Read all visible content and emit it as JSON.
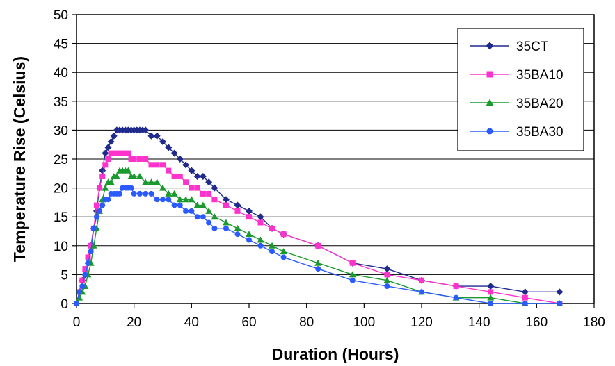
{
  "chart_data": {
    "type": "line",
    "xlabel": "Duration (Hours)",
    "ylabel": "Temperature Rise (Celsius)",
    "xlim": [
      0,
      180
    ],
    "ylim": [
      0,
      50
    ],
    "xticks": [
      0,
      20,
      40,
      60,
      80,
      100,
      120,
      140,
      160,
      180
    ],
    "yticks": [
      0,
      5,
      10,
      15,
      20,
      25,
      30,
      35,
      40,
      45,
      50
    ],
    "grid": "horizontal",
    "legend": "top-right",
    "series": [
      {
        "name": "35CT",
        "color": "#1f2a8c",
        "marker": "diamond",
        "x": [
          0,
          1,
          2,
          3,
          4,
          5,
          6,
          7,
          8,
          9,
          10,
          11,
          12,
          13,
          14,
          15,
          16,
          17,
          18,
          19,
          20,
          21,
          22,
          23,
          24,
          26,
          28,
          30,
          32,
          34,
          36,
          38,
          40,
          42,
          44,
          46,
          48,
          52,
          56,
          60,
          64,
          68,
          72,
          84,
          96,
          108,
          120,
          132,
          144,
          156,
          168
        ],
        "y": [
          0,
          2,
          4,
          5,
          7,
          10,
          13,
          16,
          20,
          23,
          26,
          27,
          28,
          29,
          30,
          30,
          30,
          30,
          30,
          30,
          30,
          30,
          30,
          30,
          30,
          29,
          29,
          28,
          27,
          26,
          25,
          24,
          23,
          22,
          22,
          21,
          20,
          18,
          17,
          16,
          15,
          13,
          12,
          10,
          7,
          6,
          4,
          3,
          3,
          2,
          2
        ]
      },
      {
        "name": "35BA10",
        "color": "#ff33cc",
        "marker": "square",
        "x": [
          0,
          1,
          2,
          3,
          4,
          5,
          6,
          7,
          8,
          9,
          10,
          11,
          12,
          13,
          14,
          15,
          16,
          17,
          18,
          19,
          20,
          22,
          24,
          26,
          28,
          30,
          32,
          34,
          36,
          38,
          40,
          42,
          44,
          46,
          48,
          52,
          56,
          60,
          64,
          68,
          72,
          84,
          96,
          108,
          120,
          132,
          144,
          156,
          168
        ],
        "y": [
          0,
          2,
          4,
          6,
          8,
          10,
          13,
          17,
          20,
          22,
          24,
          25,
          26,
          26,
          26,
          26,
          26,
          26,
          26,
          25,
          25,
          25,
          25,
          24,
          24,
          24,
          23,
          22,
          22,
          21,
          20,
          20,
          19,
          19,
          18,
          17,
          16,
          15,
          14,
          13,
          12,
          10,
          7,
          5,
          4,
          3,
          2,
          1,
          0
        ]
      },
      {
        "name": "35BA20",
        "color": "#1a9a2e",
        "marker": "triangle",
        "x": [
          0,
          1,
          2,
          3,
          4,
          5,
          6,
          7,
          8,
          9,
          10,
          11,
          12,
          13,
          14,
          15,
          16,
          17,
          18,
          19,
          20,
          22,
          24,
          26,
          28,
          30,
          32,
          34,
          36,
          38,
          40,
          42,
          44,
          46,
          48,
          52,
          56,
          60,
          64,
          68,
          72,
          84,
          96,
          108,
          120,
          132,
          144,
          156,
          168
        ],
        "y": [
          0,
          1,
          2,
          3,
          5,
          7,
          10,
          13,
          16,
          18,
          20,
          21,
          21,
          22,
          22,
          23,
          23,
          23,
          23,
          22,
          22,
          22,
          21,
          21,
          21,
          20,
          19,
          19,
          18,
          18,
          18,
          17,
          17,
          16,
          15,
          14,
          13,
          12,
          11,
          10,
          9,
          7,
          5,
          4,
          2,
          1,
          1,
          0,
          0
        ]
      },
      {
        "name": "35BA30",
        "color": "#2a5bff",
        "marker": "circle",
        "x": [
          0,
          1,
          2,
          3,
          4,
          5,
          6,
          7,
          8,
          9,
          10,
          11,
          12,
          13,
          14,
          15,
          16,
          17,
          18,
          19,
          20,
          22,
          24,
          26,
          28,
          30,
          32,
          34,
          36,
          38,
          40,
          42,
          44,
          46,
          48,
          52,
          56,
          60,
          64,
          68,
          72,
          84,
          96,
          108,
          120,
          132,
          144,
          156,
          168
        ],
        "y": [
          0,
          2,
          3,
          5,
          7,
          9,
          13,
          15,
          16,
          17,
          18,
          18,
          19,
          19,
          19,
          19,
          20,
          20,
          20,
          20,
          19,
          19,
          19,
          19,
          18,
          18,
          18,
          17,
          17,
          16,
          16,
          15,
          15,
          14,
          13,
          13,
          12,
          11,
          10,
          9,
          8,
          6,
          4,
          3,
          2,
          1,
          0,
          0,
          0
        ]
      }
    ]
  }
}
